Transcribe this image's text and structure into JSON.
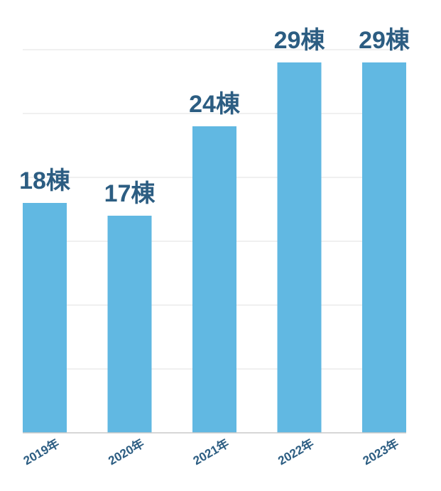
{
  "chart_data": {
    "type": "bar",
    "categories": [
      "2019年",
      "2020年",
      "2021年",
      "2022年",
      "2023年"
    ],
    "values": [
      18,
      17,
      24,
      29,
      29
    ],
    "value_suffix": "棟",
    "data_labels": [
      "18棟",
      "17棟",
      "24棟",
      "29棟",
      "29棟"
    ],
    "title": "",
    "xlabel": "",
    "ylabel": "",
    "ylim": [
      0,
      30
    ],
    "grid": true,
    "legend": "none",
    "colors": {
      "bar": "#61b8e2",
      "label": "#2c5d82",
      "grid": "#e2e2e2"
    }
  }
}
